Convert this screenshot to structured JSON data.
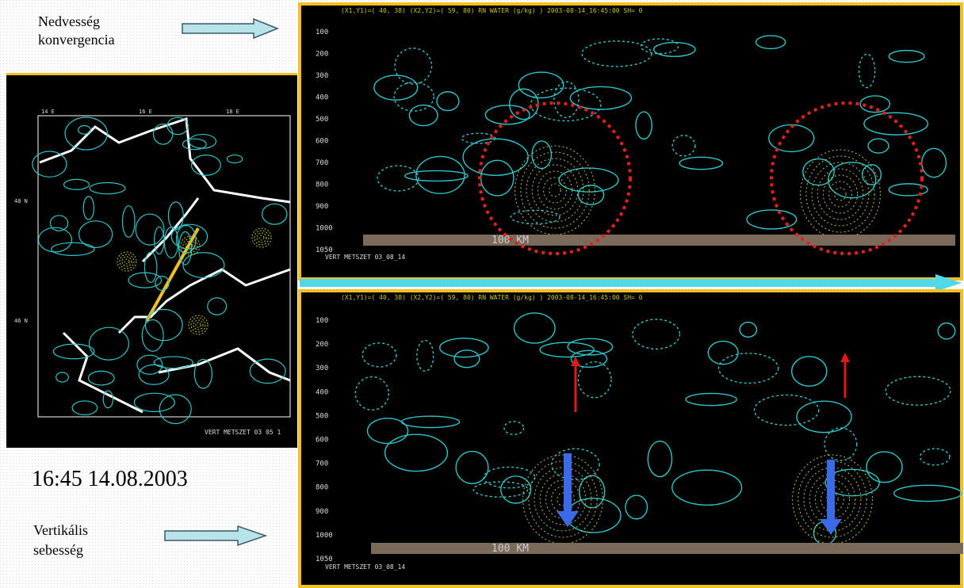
{
  "moisture_label": [
    "Nedvesség",
    "konvergencia"
  ],
  "timestamp": "16:45 14.08.2003",
  "velocity_label": [
    "Vertikális",
    "sebesség"
  ],
  "map": {
    "lon_labels": [
      "14 E",
      "16 E",
      "18 E"
    ],
    "lat_labels": [
      "48 N",
      "46 N"
    ],
    "footer": "VERT METSZET 03 05 1"
  },
  "panels": [
    {
      "header": "(X1,Y1)=( 40, 38) (X2,Y2)=( 59, 80) RN WATER (g/kg)     ) 2003-08-14_16:45:00  SH= 0",
      "levels": [
        100,
        200,
        300,
        400,
        500,
        600,
        700,
        800,
        900,
        1000,
        1050
      ],
      "scale": "100 KM",
      "footer": "VERT METSZET 03_08_14"
    },
    {
      "header": "(X1,Y1)=( 40, 38) (X2,Y2)=( 59, 80) RN WATER (g/kg)     ) 2003-08-14_16:45:00  SH= 0",
      "levels": [
        100,
        200,
        300,
        400,
        500,
        600,
        700,
        800,
        900,
        1000,
        1050
      ],
      "scale": "100 KM",
      "footer": "VERT METSZET 03_08_14"
    }
  ]
}
